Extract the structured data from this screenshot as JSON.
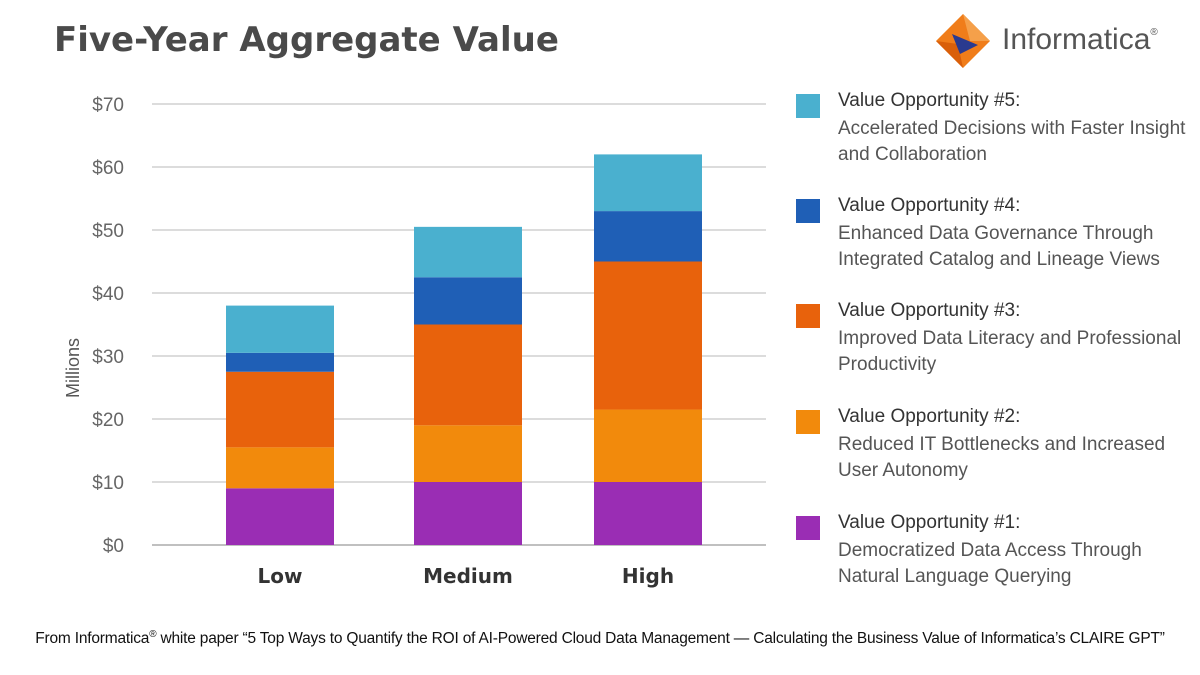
{
  "title": "Five-Year Aggregate Value",
  "brand": {
    "name": "Informatica",
    "colors": {
      "orange": "#f07d1a",
      "blue": "#2a3a8f"
    }
  },
  "chart_data": {
    "type": "bar",
    "stacked": true,
    "title": "Five-Year Aggregate Value",
    "xlabel": "",
    "ylabel": "Millions",
    "ylim": [
      0,
      70
    ],
    "yticks": [
      0,
      10,
      20,
      30,
      40,
      50,
      60,
      70
    ],
    "ytick_labels": [
      "$0",
      "$10",
      "$20",
      "$30",
      "$40",
      "$50",
      "$60",
      "$70"
    ],
    "grid": true,
    "legend_position": "right",
    "categories": [
      "Low",
      "Medium",
      "High"
    ],
    "series": [
      {
        "name": "Value Opportunity #1",
        "color": "#9a2db4",
        "values": [
          9,
          10,
          10
        ]
      },
      {
        "name": "Value Opportunity #2",
        "color": "#f28a0c",
        "values": [
          6.5,
          9,
          11.5
        ]
      },
      {
        "name": "Value Opportunity #3",
        "color": "#e8620c",
        "values": [
          12,
          16,
          23.5
        ]
      },
      {
        "name": "Value Opportunity #4",
        "color": "#1f5fb6",
        "values": [
          3,
          7.5,
          8
        ]
      },
      {
        "name": "Value Opportunity #5",
        "color": "#4ab0cf",
        "values": [
          7.5,
          8,
          9
        ]
      }
    ]
  },
  "legend": [
    {
      "title": "Value Opportunity #5:",
      "desc": "Accelerated Decisions with Faster Insight and Collaboration",
      "color": "#4ab0cf"
    },
    {
      "title": "Value Opportunity #4:",
      "desc": "Enhanced Data Governance Through Integrated Catalog and Lineage Views",
      "color": "#1f5fb6"
    },
    {
      "title": "Value Opportunity #3:",
      "desc": "Improved Data Literacy and Professional Productivity",
      "color": "#e8620c"
    },
    {
      "title": "Value Opportunity #2:",
      "desc": "Reduced IT Bottlenecks and Increased User Autonomy",
      "color": "#f28a0c"
    },
    {
      "title": "Value Opportunity #1:",
      "desc": "Democratized Data Access Through Natural Language Querying",
      "color": "#9a2db4"
    }
  ],
  "footnote": {
    "prefix": "From Informatica",
    "reg": "®",
    "text": " white paper “5 Top Ways to Quantify the ROI of AI-Powered Cloud Data Management — Calculating the Business Value of Informatica’s CLAIRE GPT”"
  }
}
